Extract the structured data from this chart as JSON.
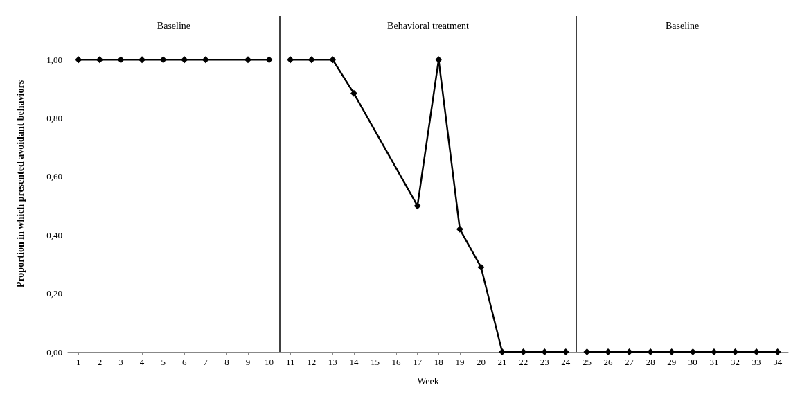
{
  "chart_data": {
    "type": "line",
    "xlabel": "Week",
    "ylabel": "Proportion in which presented avoidant behaviors",
    "annotations": [
      "Baseline",
      "Behavioral treatment",
      "Baseline"
    ],
    "series": [
      {
        "color": "#000000",
        "x": [
          1,
          2,
          3,
          4,
          5,
          6,
          7,
          9,
          10
        ],
        "values": [
          1,
          1,
          1,
          1,
          1,
          1,
          1,
          1,
          1
        ]
      },
      {
        "color": "#000000",
        "x": [
          11,
          12,
          13,
          14,
          17,
          18,
          19,
          20,
          21,
          22,
          23,
          24
        ],
        "values": [
          1,
          1,
          1,
          0.885,
          0.5,
          1,
          0.42,
          0.29,
          0,
          0,
          0,
          0
        ]
      },
      {
        "color": "#000000",
        "x": [
          25,
          26,
          27,
          28,
          29,
          30,
          31,
          32,
          33,
          34
        ],
        "values": [
          0,
          0,
          0,
          0,
          0,
          0,
          0,
          0,
          0,
          0
        ]
      }
    ],
    "ref_lines": [
      {
        "axis": "x",
        "value": 10.5,
        "color": "#000000"
      },
      {
        "axis": "x",
        "value": 24.5,
        "color": "#000000"
      }
    ],
    "xlim": [
      0.5,
      34.5
    ],
    "xticks": [
      1,
      2,
      3,
      4,
      5,
      6,
      7,
      8,
      9,
      10,
      11,
      12,
      13,
      14,
      15,
      16,
      17,
      18,
      19,
      20,
      21,
      22,
      23,
      24,
      25,
      26,
      27,
      28,
      29,
      30,
      31,
      32,
      33,
      34
    ],
    "ylim": [
      0,
      1.15
    ],
    "yticks": [
      {
        "value": 0,
        "label": "0,00"
      },
      {
        "value": 0.2,
        "label": "0,20"
      },
      {
        "value": 0.4,
        "label": "0,40"
      },
      {
        "value": 0.6,
        "label": "0,60"
      },
      {
        "value": 0.8,
        "label": "0,80"
      },
      {
        "value": 1,
        "label": "1,00"
      }
    ],
    "grid": false,
    "marker": "diamond",
    "line_style": "solid"
  }
}
